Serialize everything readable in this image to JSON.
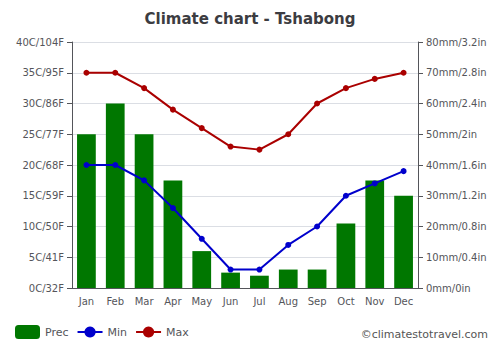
{
  "chart_data": {
    "type": "bar",
    "title": "Climate chart - Tshabong",
    "categories": [
      "Jan",
      "Feb",
      "Mar",
      "Apr",
      "May",
      "Jun",
      "Jul",
      "Aug",
      "Sep",
      "Oct",
      "Nov",
      "Dec"
    ],
    "series": [
      {
        "name": "Prec",
        "type": "bar",
        "axis": "y2",
        "color": "#007700",
        "values": [
          50,
          60,
          50,
          35,
          12,
          5,
          4,
          6,
          6,
          21,
          35,
          30
        ]
      },
      {
        "name": "Min",
        "type": "line",
        "color": "#0000CC",
        "marker": "circle",
        "values": [
          20,
          20,
          17.5,
          13,
          8,
          3,
          3,
          7,
          10,
          15,
          17,
          19
        ]
      },
      {
        "name": "Max",
        "type": "line",
        "color": "#AA0000",
        "marker": "circle",
        "values": [
          35,
          35,
          32.5,
          29,
          26,
          23,
          22.5,
          25,
          30,
          32.5,
          34,
          35
        ]
      }
    ],
    "ylim": [
      0,
      40
    ],
    "yticks": [
      {
        "value": 0,
        "label": "0C/32F"
      },
      {
        "value": 5,
        "label": "5C/41F"
      },
      {
        "value": 10,
        "label": "10C/50F"
      },
      {
        "value": 15,
        "label": "15C/59F"
      },
      {
        "value": 20,
        "label": "20C/68F"
      },
      {
        "value": 25,
        "label": "25C/77F"
      },
      {
        "value": 30,
        "label": "30C/86F"
      },
      {
        "value": 35,
        "label": "35C/95F"
      },
      {
        "value": 40,
        "label": "40C/104F"
      }
    ],
    "y2lim": [
      0,
      80
    ],
    "y2ticks": [
      {
        "value": 0,
        "label": "0mm/0in"
      },
      {
        "value": 10,
        "label": "10mm/0.4in"
      },
      {
        "value": 20,
        "label": "20mm/0.8in"
      },
      {
        "value": 30,
        "label": "30mm/1.2in"
      },
      {
        "value": 40,
        "label": "40mm/1.6in"
      },
      {
        "value": 50,
        "label": "50mm/2in"
      },
      {
        "value": 60,
        "label": "60mm/2.4in"
      },
      {
        "value": 70,
        "label": "70mm/2.8in"
      },
      {
        "value": 80,
        "label": "80mm/3.2in"
      }
    ],
    "grid": true,
    "legend": "lower left",
    "annotations": [
      "©climatestotravel.com"
    ]
  }
}
